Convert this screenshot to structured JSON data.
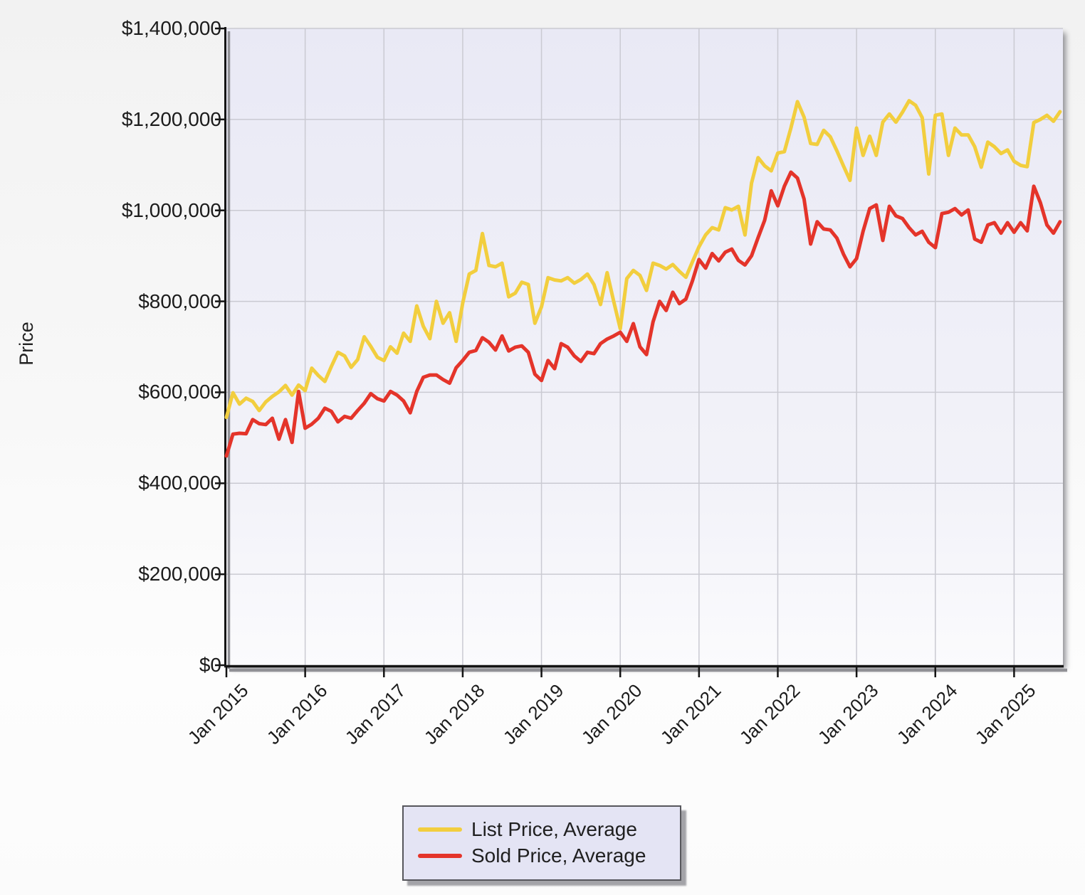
{
  "chart_data": {
    "type": "line",
    "title": "",
    "xlabel": "",
    "ylabel": "Price",
    "ylim": [
      0,
      1400000
    ],
    "y_tick_interval": 200000,
    "y_tick_labels_desc": [
      "$1,400,000",
      "$1,200,000",
      "$1,000,000",
      "$800,000",
      "$600,000",
      "$400,000",
      "$200,000",
      "$0"
    ],
    "x_tick_labels": [
      "Jan 2015",
      "Jan 2016",
      "Jan 2017",
      "Jan 2018",
      "Jan 2019",
      "Jan 2020",
      "Jan 2021",
      "Jan 2022",
      "Jan 2023",
      "Jan 2024",
      "Jan 2025"
    ],
    "x_start": "Jan 2015",
    "x_end": "Aug 2025",
    "frequency": "monthly",
    "grid": true,
    "legend_position": "bottom-center",
    "series": [
      {
        "name": "List Price, Average",
        "color": "#F2CE3E",
        "values": [
          545000,
          599000,
          574000,
          587000,
          580000,
          560000,
          579000,
          591000,
          601000,
          615000,
          594000,
          616000,
          604000,
          653000,
          637000,
          624000,
          657000,
          688000,
          680000,
          655000,
          672000,
          722000,
          701000,
          677000,
          670000,
          700000,
          686000,
          730000,
          712000,
          790000,
          745000,
          718000,
          800000,
          752000,
          775000,
          712000,
          796000,
          860000,
          868000,
          949000,
          879000,
          876000,
          884000,
          810000,
          818000,
          842000,
          837000,
          752000,
          788000,
          852000,
          847000,
          845000,
          852000,
          840000,
          848000,
          860000,
          837000,
          793000,
          863000,
          800000,
          740000,
          850000,
          868000,
          857000,
          824000,
          884000,
          879000,
          871000,
          881000,
          866000,
          853000,
          887000,
          920000,
          946000,
          962000,
          957000,
          1006000,
          1001000,
          1009000,
          946000,
          1060000,
          1116000,
          1098000,
          1087000,
          1126000,
          1129000,
          1181000,
          1239000,
          1205000,
          1147000,
          1145000,
          1176000,
          1162000,
          1131000,
          1098000,
          1066000,
          1181000,
          1121000,
          1163000,
          1121000,
          1194000,
          1212000,
          1194000,
          1216000,
          1241000,
          1231000,
          1204000,
          1080000,
          1209000,
          1212000,
          1121000,
          1181000,
          1166000,
          1166000,
          1140000,
          1095000,
          1150000,
          1140000,
          1125000,
          1133000,
          1108000,
          1099000,
          1096000,
          1193000,
          1200000,
          1209000,
          1196000,
          1217000
        ]
      },
      {
        "name": "Sold Price, Average",
        "color": "#E4342A",
        "values": [
          460000,
          508000,
          510000,
          509000,
          540000,
          531000,
          529000,
          543000,
          497000,
          540000,
          490000,
          602000,
          521000,
          530000,
          543000,
          565000,
          558000,
          535000,
          547000,
          543000,
          560000,
          576000,
          597000,
          586000,
          581000,
          602000,
          594000,
          581000,
          555000,
          602000,
          633000,
          638000,
          638000,
          628000,
          620000,
          654000,
          670000,
          688000,
          692000,
          720000,
          710000,
          693000,
          724000,
          691000,
          699000,
          702000,
          688000,
          640000,
          626000,
          670000,
          652000,
          707000,
          699000,
          680000,
          668000,
          688000,
          685000,
          707000,
          717000,
          724000,
          732000,
          712000,
          751000,
          700000,
          683000,
          755000,
          800000,
          780000,
          820000,
          795000,
          805000,
          845000,
          892000,
          873000,
          905000,
          889000,
          908000,
          915000,
          890000,
          880000,
          900000,
          940000,
          978000,
          1043000,
          1010000,
          1053000,
          1084000,
          1071000,
          1025000,
          926000,
          975000,
          959000,
          957000,
          939000,
          904000,
          876000,
          894000,
          954000,
          1004000,
          1012000,
          934000,
          1009000,
          988000,
          982000,
          962000,
          946000,
          954000,
          930000,
          918000,
          993000,
          996000,
          1004000,
          990000,
          1001000,
          937000,
          930000,
          968000,
          973000,
          950000,
          973000,
          952000,
          973000,
          955000,
          1053000,
          1017000,
          968000,
          950000,
          975000
        ]
      }
    ]
  },
  "colors": {
    "plot_bg_top": "#E9E9F5",
    "plot_bg_bottom": "#FBFBFD",
    "gridline": "#CACAD2",
    "axis": "#141414",
    "axis_shadow": "#909095",
    "panel_shadow": "#8E8E93"
  }
}
